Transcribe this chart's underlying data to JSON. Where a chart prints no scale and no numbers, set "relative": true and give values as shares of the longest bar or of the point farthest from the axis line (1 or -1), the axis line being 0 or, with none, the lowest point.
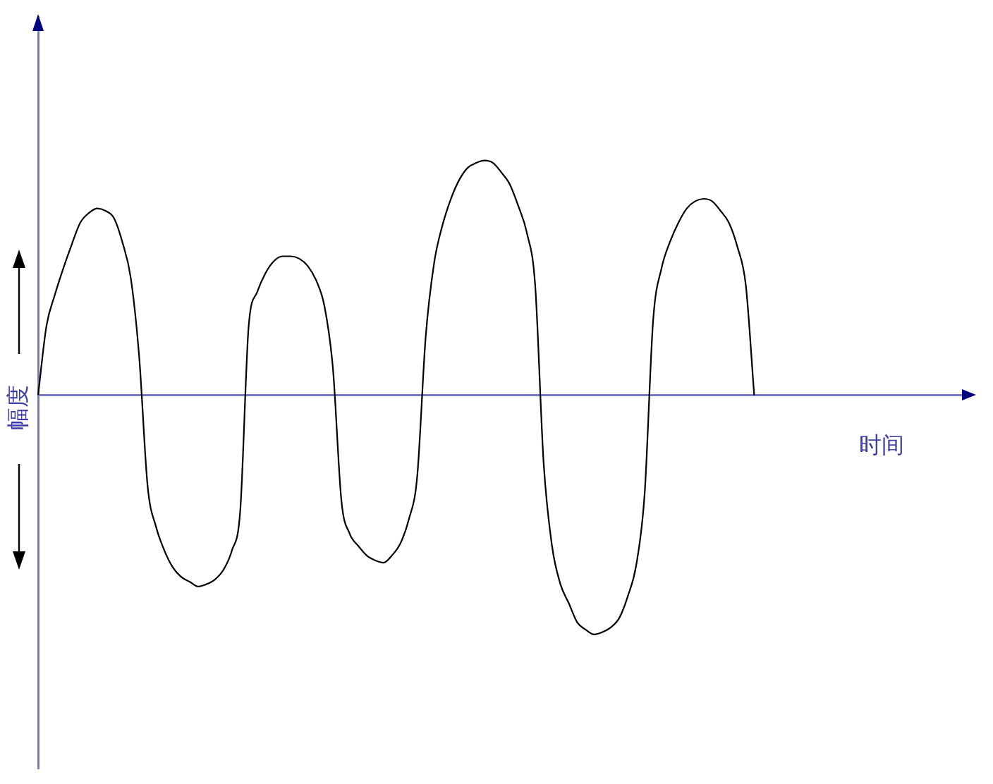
{
  "chart_data": {
    "type": "line",
    "xlabel": "时间",
    "ylabel": "幅度",
    "relative": true,
    "marker": "none",
    "categories": [
      null,
      null,
      null,
      null,
      null,
      null,
      null,
      null,
      null,
      null,
      null,
      null,
      null,
      null,
      null,
      null,
      null,
      null,
      null,
      null,
      null,
      null,
      null,
      null,
      null,
      null,
      null,
      null,
      null,
      null,
      null,
      null,
      null,
      null,
      null,
      null,
      null,
      null,
      null,
      null,
      null,
      null,
      null,
      null,
      null,
      null,
      null,
      null,
      null,
      null,
      null,
      null,
      null,
      null,
      null,
      null,
      null,
      null,
      null,
      null,
      null,
      null,
      null,
      null,
      null,
      null,
      null,
      null,
      null,
      null,
      null,
      null,
      null,
      null,
      null,
      null,
      null,
      null,
      null,
      null,
      null,
      null,
      null,
      null,
      null,
      null
    ],
    "values": [
      0,
      0.29,
      0.42,
      0.53,
      0.63,
      0.72,
      0.76,
      0.78,
      0.77,
      0.74,
      0.64,
      0.49,
      0.16,
      -0.38,
      -0.55,
      -0.65,
      -0.72,
      -0.76,
      -0.78,
      -0.8,
      -0.79,
      -0.77,
      -0.73,
      -0.65,
      -0.48,
      0.29,
      0.43,
      0.51,
      0.56,
      0.58,
      0.58,
      0.57,
      0.54,
      0.48,
      0.37,
      0.11,
      -0.44,
      -0.58,
      -0.63,
      -0.67,
      -0.69,
      -0.7,
      -0.67,
      -0.62,
      -0.52,
      -0.34,
      0.24,
      0.55,
      0.71,
      0.82,
      0.9,
      0.95,
      0.97,
      0.98,
      0.97,
      0.93,
      0.88,
      0.79,
      0.68,
      0.46,
      -0.28,
      -0.63,
      -0.79,
      -0.87,
      -0.95,
      -0.98,
      -1,
      -0.99,
      -0.97,
      -0.93,
      -0.84,
      -0.71,
      -0.41,
      0.31,
      0.53,
      0.64,
      0.72,
      0.78,
      0.81,
      0.82,
      0.81,
      0.77,
      0.72,
      0.62,
      0.46,
      0
    ],
    "color": "#000000",
    "ref_lines": [
      {
        "axis": "y",
        "value": 0,
        "color": "#7a7ac4"
      }
    ]
  }
}
